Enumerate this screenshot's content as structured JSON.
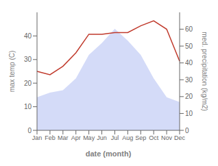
{
  "chart_data": {
    "type": "area",
    "xlabel": "date (month)",
    "ylabel": "max temp (C)",
    "y2label": "med. precipitation (kg/m2)",
    "categories": [
      "Jan",
      "Feb",
      "Mar",
      "Apr",
      "May",
      "Jun",
      "Jul",
      "Aug",
      "Sep",
      "Oct",
      "Nov",
      "Dec"
    ],
    "series": [
      {
        "type": "area",
        "color": "#c5cff5",
        "values": [
          14,
          16,
          17,
          22,
          32,
          37,
          43,
          38,
          32,
          22,
          14,
          12
        ]
      },
      {
        "type": "line",
        "color": "#c0392b",
        "axis": "y2",
        "values": [
          35,
          33,
          38,
          46,
          57,
          57,
          58,
          58,
          62,
          65,
          60,
          41
        ]
      }
    ],
    "ylim": [
      0,
      50
    ],
    "yticks": [
      0,
      10,
      20,
      30,
      40
    ],
    "y2lim": [
      0,
      70
    ],
    "y2ticks": [
      0,
      10,
      20,
      30,
      40,
      50,
      60
    ],
    "grid": false
  }
}
